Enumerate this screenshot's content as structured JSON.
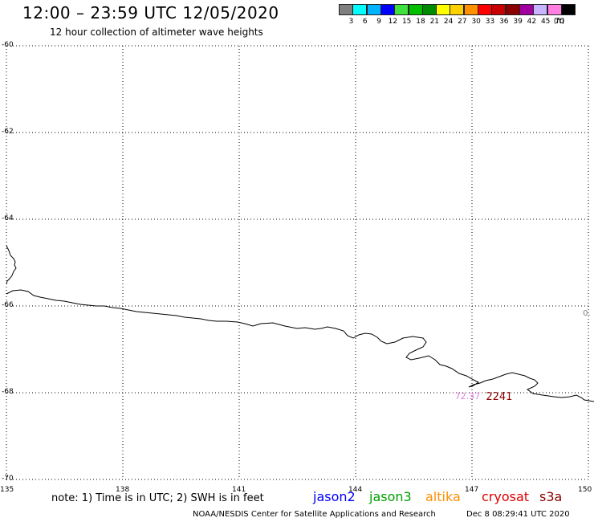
{
  "header": {
    "title": "12:00 – 23:59 UTC 12/05/2020",
    "subtitle": "12 hour collection of altimeter wave heights"
  },
  "legend": {
    "unit": "(ft)",
    "swatches": [
      {
        "color": "#7f7f7f",
        "label": "3"
      },
      {
        "color": "#00ffff",
        "label": "6"
      },
      {
        "color": "#00b4ff",
        "label": "9"
      },
      {
        "color": "#0000ff",
        "label": "12"
      },
      {
        "color": "#3fe13f",
        "label": "15"
      },
      {
        "color": "#00c000",
        "label": "18"
      },
      {
        "color": "#008c00",
        "label": "21"
      },
      {
        "color": "#ffff00",
        "label": "24"
      },
      {
        "color": "#ffd000",
        "label": "27"
      },
      {
        "color": "#ff9000",
        "label": "30"
      },
      {
        "color": "#ff0000",
        "label": "33"
      },
      {
        "color": "#c80000",
        "label": "36"
      },
      {
        "color": "#8c0000",
        "label": "39"
      },
      {
        "color": "#a000a0",
        "label": "42"
      },
      {
        "color": "#c8b4ff",
        "label": "45"
      },
      {
        "color": "#ff80e0",
        "label": "70"
      },
      {
        "color": "#000000",
        "label": ""
      }
    ]
  },
  "map": {
    "lon_range": [
      135,
      150
    ],
    "lat_range": [
      -70,
      -60
    ],
    "y_labels": [
      "-60",
      "-62",
      "-64",
      "-66",
      "-68",
      "-70"
    ],
    "x_labels": [
      "135",
      "138",
      "141",
      "144",
      "147",
      "150"
    ],
    "grid": "dotted",
    "coastline_color": "#000000"
  },
  "observations": [
    {
      "text": "72.37",
      "lon": 146.6,
      "lat": -68.1,
      "color": "#e080e0"
    },
    {
      "text": "2241",
      "lon": 147.4,
      "lat": -68.1,
      "color": "#8c0000"
    },
    {
      "text": "0.",
      "lon": 149.9,
      "lat": -66.2,
      "color": "#7f7f7f"
    }
  ],
  "footer": {
    "note": "note: 1) Time is in UTC; 2) SWH is in feet",
    "satellites": [
      {
        "name": "jason2",
        "color": "#0000ff"
      },
      {
        "name": "jason3",
        "color": "#00a000"
      },
      {
        "name": "altika",
        "color": "#ff9000"
      },
      {
        "name": "cryosat",
        "color": "#e00000"
      },
      {
        "name": "s3a",
        "color": "#8c0000"
      }
    ],
    "credit": "NOAA/NESDIS Center for Satellite Applications and Research",
    "timestamp": "Dec  8 08:29:41 UTC 2020"
  }
}
